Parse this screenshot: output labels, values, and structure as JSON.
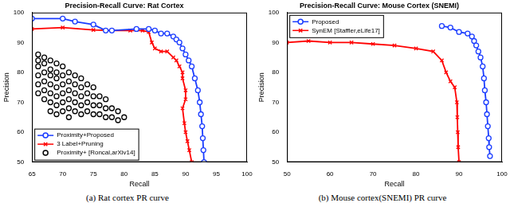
{
  "chart_data": [
    {
      "type": "line",
      "title": "Precision-Recall Curve: Rat Cortex",
      "caption": "(a) Rat cortex PR curve",
      "x_label": "Recall",
      "y_label": "Precision",
      "xlim": [
        65,
        100
      ],
      "xticks": [
        65,
        70,
        75,
        80,
        85,
        90,
        95,
        100
      ],
      "ylim": [
        50,
        100
      ],
      "yticks": [
        50,
        60,
        70,
        80,
        90,
        100
      ],
      "grid": false,
      "legend": "lower left",
      "series": [
        {
          "name": "Proximity+Proposed",
          "color": "#1a3cff",
          "type": "line",
          "marker": "circle",
          "line_style": "solid",
          "x": [
            65,
            70,
            72,
            75,
            77,
            78,
            82,
            84,
            85,
            86,
            87,
            88,
            88.5,
            89,
            89.5,
            90,
            90.5,
            91,
            91.5,
            92,
            92.3,
            92.5,
            92.7,
            92.8,
            92.9,
            93
          ],
          "values": [
            98,
            98,
            97,
            96,
            94,
            94,
            94.5,
            94.5,
            94,
            93,
            93,
            92,
            91,
            90,
            88,
            86,
            84,
            82,
            78,
            74,
            70,
            66,
            62,
            58,
            54,
            50
          ]
        },
        {
          "name": "3 Label+Pruning",
          "color": "#ff0000",
          "type": "line",
          "marker": "x",
          "line_style": "solid",
          "x": [
            65,
            70,
            75,
            78,
            81,
            83,
            84,
            84.5,
            85,
            86,
            87,
            88,
            88.5,
            89,
            89.5,
            89.5,
            90,
            90,
            89.5,
            89.8,
            90,
            90.3,
            90.6,
            91
          ],
          "values": [
            94.5,
            95,
            94.2,
            94,
            94,
            94,
            93.5,
            90,
            88,
            87,
            87,
            85,
            84,
            82,
            80,
            78,
            74,
            71,
            68,
            63,
            60,
            57,
            54,
            50
          ]
        },
        {
          "name": "Proximity+ [Roncal,arXiv14]",
          "color": "#000000",
          "type": "scatter",
          "marker": "circle",
          "x": [
            66,
            66,
            66,
            66,
            66,
            66,
            67,
            67,
            67,
            67,
            67,
            67,
            68,
            68,
            68,
            68,
            68,
            68,
            68,
            69,
            69,
            69,
            69,
            69,
            69,
            69,
            70,
            70,
            70,
            70,
            70,
            70,
            71,
            71,
            71,
            71,
            71,
            71,
            72,
            72,
            72,
            72,
            72,
            73,
            73,
            73,
            73,
            73,
            74,
            74,
            74,
            74,
            75,
            75,
            75,
            75,
            76,
            76,
            76,
            77,
            77,
            77,
            78,
            78,
            79,
            79,
            80
          ],
          "values": [
            86,
            84,
            82,
            79,
            76,
            73,
            85,
            83,
            80,
            77,
            74,
            71,
            84,
            81,
            79,
            76,
            73,
            70,
            67,
            83,
            80,
            78,
            75,
            72,
            69,
            66,
            82,
            79,
            76,
            73,
            70,
            67,
            80,
            77,
            74,
            71,
            68,
            65,
            79,
            76,
            73,
            70,
            67,
            78,
            75,
            72,
            69,
            66,
            76,
            73,
            70,
            67,
            75,
            72,
            69,
            66,
            72,
            69,
            66,
            71,
            68,
            65,
            68,
            65,
            67,
            64,
            65
          ]
        }
      ]
    },
    {
      "type": "line",
      "title": "Precision-Recall Curve: Mouse Cortex (SNEMI)",
      "caption": "(b) Mouse cortex(SNEMI) PR curve",
      "x_label": "Recall",
      "y_label": "Precision",
      "xlim": [
        50,
        100
      ],
      "xticks": [
        50,
        60,
        70,
        80,
        90,
        100
      ],
      "ylim": [
        50,
        100
      ],
      "yticks": [
        50,
        60,
        70,
        80,
        90,
        100
      ],
      "grid": false,
      "legend": "upper left",
      "series": [
        {
          "name": "Proposed",
          "color": "#1a3cff",
          "type": "line",
          "marker": "circle",
          "line_style": "solid",
          "x": [
            86,
            88,
            90,
            92,
            93,
            93.5,
            94,
            94.5,
            95,
            95.5,
            95.8,
            96,
            96.3,
            96.5,
            96.7,
            96.9,
            97,
            97.2
          ],
          "values": [
            95.5,
            95,
            93.5,
            93,
            92,
            90.5,
            89,
            87,
            85,
            82,
            78,
            74,
            70,
            66,
            62,
            58,
            55,
            52
          ]
        },
        {
          "name": "SynEM [Staffler,eLife17]",
          "color": "#ff0000",
          "type": "line",
          "marker": "x",
          "line_style": "solid",
          "x": [
            50,
            55,
            60,
            65,
            70,
            75,
            80,
            84,
            86,
            87,
            88,
            89,
            89.5,
            89.6,
            89.7,
            89.8,
            90
          ],
          "values": [
            90,
            90.5,
            90,
            90,
            89.5,
            89,
            88,
            87,
            84,
            80,
            77,
            75,
            70,
            65,
            60,
            55,
            50
          ]
        }
      ]
    }
  ]
}
